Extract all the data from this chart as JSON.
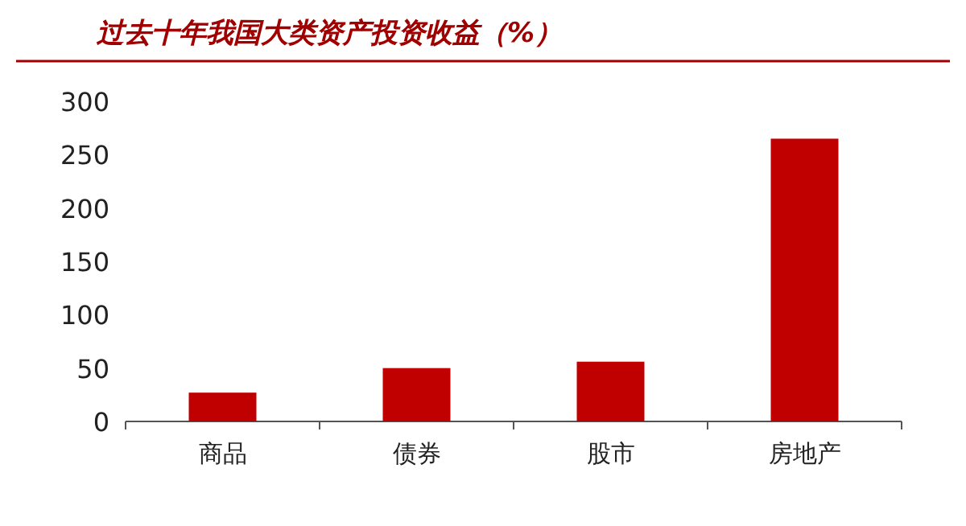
{
  "chart_data": {
    "type": "bar",
    "title": "过去十年我国大类资产投资收益（%）",
    "categories": [
      "商品",
      "债券",
      "股市",
      "房地产"
    ],
    "values": [
      27,
      50,
      56,
      265
    ],
    "color": "#c00000",
    "ylim": [
      0,
      300
    ],
    "yticks": [
      0,
      50,
      100,
      150,
      200,
      250,
      300
    ]
  }
}
